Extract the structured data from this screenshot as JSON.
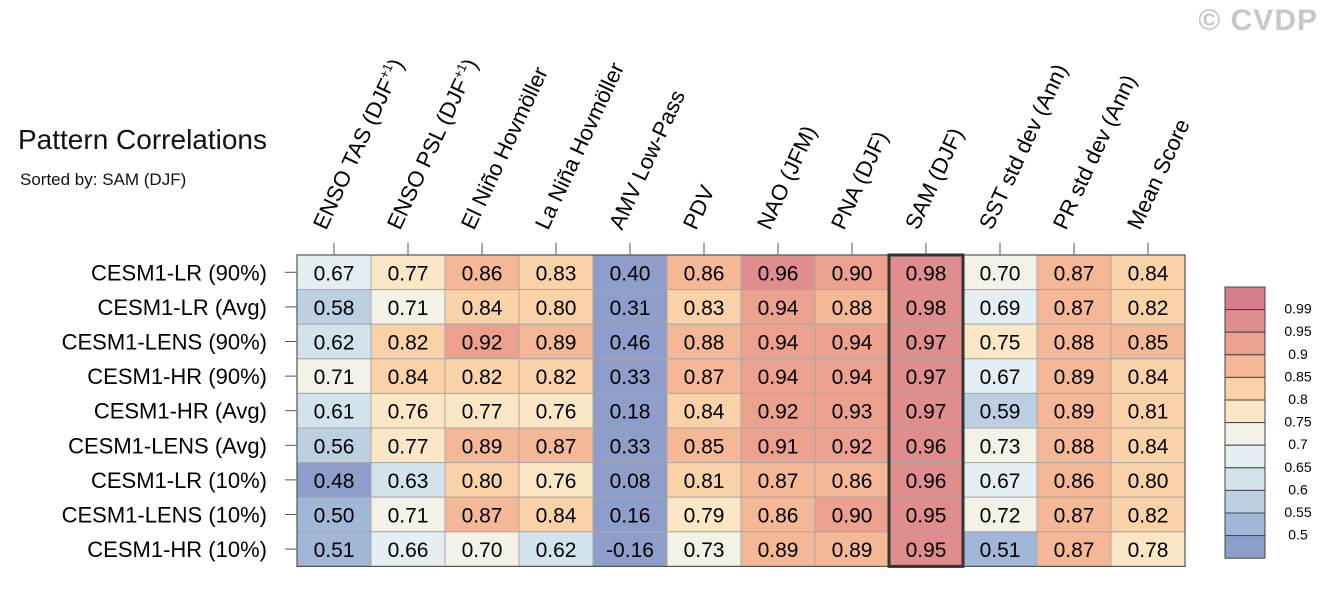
{
  "title": "Pattern Correlations",
  "subtitle": "Sorted by: SAM (DJF)",
  "watermark": "© CVDP",
  "chart_data": {
    "type": "heatmap",
    "columns": [
      {
        "text": "ENSO TAS (DJF",
        "sup": "+1",
        "close": ")"
      },
      {
        "text": "ENSO PSL (DJF",
        "sup": "+1",
        "close": ")"
      },
      {
        "text": "El Niño Hovmöller"
      },
      {
        "text": "La Niña Hovmöller"
      },
      {
        "text": "AMV Low-Pass"
      },
      {
        "text": "PDV"
      },
      {
        "text": "NAO (JFM)"
      },
      {
        "text": "PNA (DJF)"
      },
      {
        "text": "SAM (DJF)"
      },
      {
        "text": "SST std dev (Ann)"
      },
      {
        "text": "PR std dev (Ann)"
      },
      {
        "text": "Mean Score"
      }
    ],
    "rows": [
      "CESM1-LR (90%)",
      "CESM1-LR (Avg)",
      "CESM1-LENS (90%)",
      "CESM1-HR (90%)",
      "CESM1-HR (Avg)",
      "CESM1-LENS (Avg)",
      "CESM1-LR (10%)",
      "CESM1-LENS (10%)",
      "CESM1-HR (10%)"
    ],
    "values": [
      [
        0.67,
        0.77,
        0.86,
        0.83,
        0.4,
        0.86,
        0.96,
        0.9,
        0.98,
        0.7,
        0.87,
        0.84
      ],
      [
        0.58,
        0.71,
        0.84,
        0.8,
        0.31,
        0.83,
        0.94,
        0.88,
        0.98,
        0.69,
        0.87,
        0.82
      ],
      [
        0.62,
        0.82,
        0.92,
        0.89,
        0.46,
        0.88,
        0.94,
        0.94,
        0.97,
        0.75,
        0.88,
        0.85
      ],
      [
        0.71,
        0.84,
        0.82,
        0.82,
        0.33,
        0.87,
        0.94,
        0.94,
        0.97,
        0.67,
        0.89,
        0.84
      ],
      [
        0.61,
        0.76,
        0.77,
        0.76,
        0.18,
        0.84,
        0.92,
        0.93,
        0.97,
        0.59,
        0.89,
        0.81
      ],
      [
        0.56,
        0.77,
        0.89,
        0.87,
        0.33,
        0.85,
        0.91,
        0.92,
        0.96,
        0.73,
        0.88,
        0.84
      ],
      [
        0.48,
        0.63,
        0.8,
        0.76,
        0.08,
        0.81,
        0.87,
        0.86,
        0.96,
        0.67,
        0.86,
        0.8
      ],
      [
        0.5,
        0.71,
        0.87,
        0.84,
        0.16,
        0.79,
        0.86,
        0.9,
        0.95,
        0.72,
        0.87,
        0.82
      ],
      [
        0.51,
        0.66,
        0.7,
        0.62,
        -0.16,
        0.73,
        0.89,
        0.89,
        0.95,
        0.51,
        0.87,
        0.78
      ]
    ],
    "highlight_column": "SAM (DJF)",
    "colorbar": {
      "levels": [
        0.5,
        0.55,
        0.6,
        0.65,
        0.7,
        0.75,
        0.8,
        0.85,
        0.9,
        0.95,
        0.99
      ],
      "tick_labels": [
        "0.5",
        "0.55",
        "0.6",
        "0.65",
        "0.7",
        "0.75",
        "0.8",
        "0.85",
        "0.9",
        "0.95",
        "0.99"
      ],
      "colors": [
        "#8e9dca",
        "#a2b7d7",
        "#bcd0e2",
        "#d2e3ec",
        "#e4eff3",
        "#f4f2e6",
        "#fbe7c6",
        "#f9d2a8",
        "#f4b897",
        "#eca08e",
        "#e08d8d",
        "#d77c8c"
      ]
    }
  }
}
